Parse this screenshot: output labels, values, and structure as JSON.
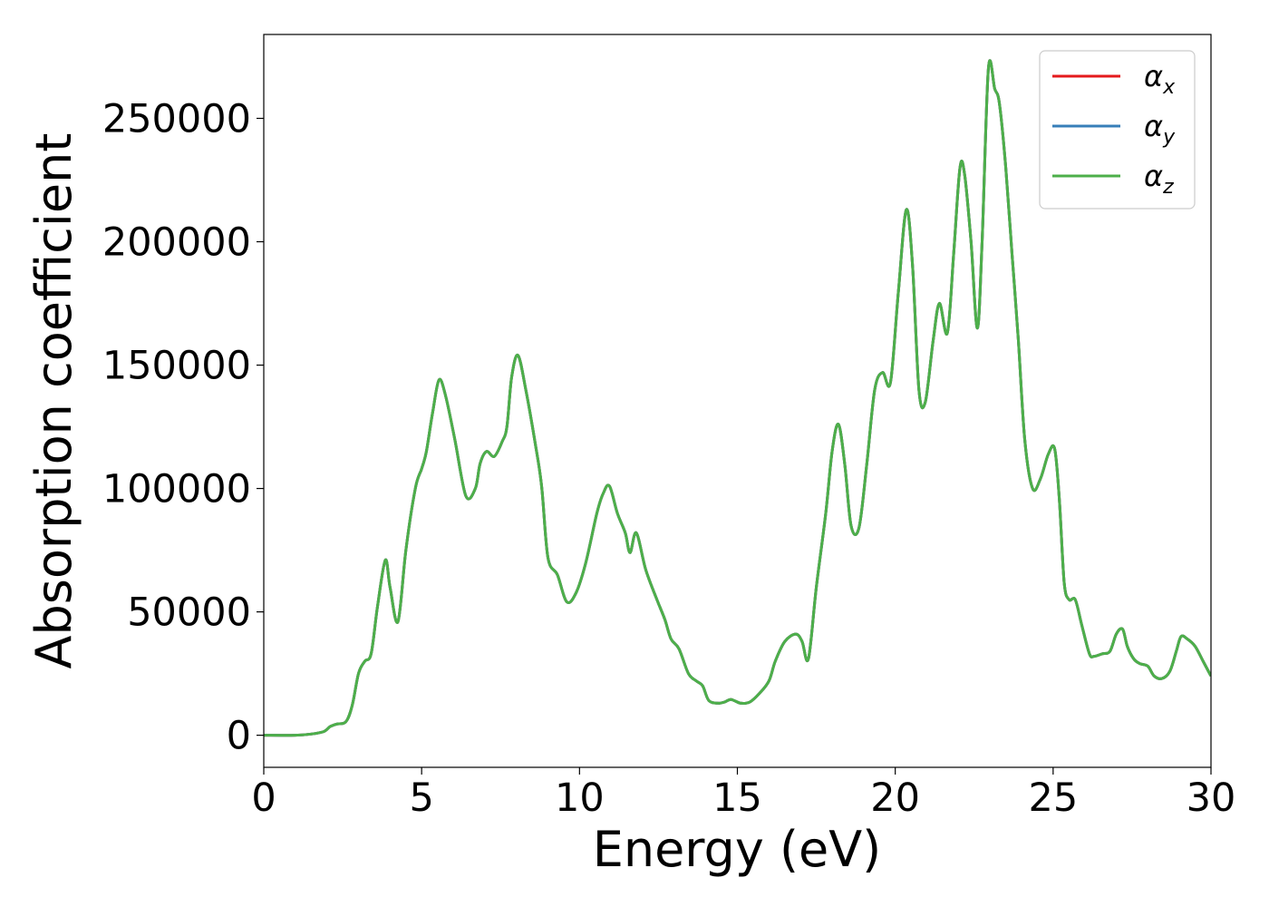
{
  "chart_data": {
    "type": "line",
    "xlabel": "Energy (eV)",
    "ylabel": "Absorption coefficient",
    "xlim": [
      0,
      30
    ],
    "ylim": [
      -13000,
      284000
    ],
    "xticks": [
      0,
      5,
      10,
      15,
      20,
      25,
      30
    ],
    "xtick_labels": [
      "0",
      "5",
      "10",
      "15",
      "20",
      "25",
      "30"
    ],
    "yticks": [
      0,
      50000,
      100000,
      150000,
      200000,
      250000
    ],
    "ytick_labels": [
      "0",
      "50000",
      "100000",
      "150000",
      "200000",
      "250000"
    ],
    "grid": false,
    "legend_position": "top-right",
    "x": [
      0,
      1,
      1.5,
      1.9,
      2.1,
      2.3,
      2.6,
      2.8,
      3.0,
      3.2,
      3.4,
      3.6,
      3.85,
      4.0,
      4.25,
      4.5,
      4.8,
      5.0,
      5.15,
      5.35,
      5.55,
      5.75,
      6.05,
      6.4,
      6.7,
      6.85,
      7.05,
      7.3,
      7.55,
      7.7,
      7.85,
      8.05,
      8.3,
      8.6,
      8.8,
      9.0,
      9.3,
      9.6,
      9.9,
      10.2,
      10.55,
      10.75,
      10.95,
      11.2,
      11.45,
      11.6,
      11.8,
      12.1,
      12.45,
      12.7,
      12.9,
      13.15,
      13.45,
      13.7,
      13.9,
      14.1,
      14.4,
      14.6,
      14.8,
      15.1,
      15.4,
      15.7,
      16.0,
      16.2,
      16.5,
      16.85,
      17.05,
      17.25,
      17.5,
      17.8,
      18.0,
      18.2,
      18.4,
      18.6,
      18.85,
      19.1,
      19.35,
      19.6,
      19.85,
      20.1,
      20.35,
      20.55,
      20.75,
      20.95,
      21.2,
      21.4,
      21.65,
      21.85,
      22.05,
      22.2,
      22.4,
      22.6,
      22.75,
      22.95,
      23.15,
      23.3,
      23.5,
      23.7,
      23.9,
      24.1,
      24.35,
      24.6,
      24.85,
      25.05,
      25.2,
      25.35,
      25.5,
      25.7,
      25.9,
      26.15,
      26.3,
      26.55,
      26.8,
      27.0,
      27.2,
      27.35,
      27.55,
      27.75,
      28.0,
      28.2,
      28.45,
      28.7,
      28.9,
      29.05,
      29.25,
      29.5,
      29.75,
      30.0
    ],
    "series": [
      {
        "name": "α_x",
        "color": "#e41a1c",
        "values": [
          0,
          0,
          500,
          1500,
          3500,
          4500,
          5500,
          12000,
          25000,
          30000,
          33000,
          52000,
          71000,
          60000,
          46000,
          75000,
          100000,
          108000,
          115000,
          131000,
          144000,
          138000,
          120000,
          97000,
          100000,
          110000,
          115000,
          113000,
          119000,
          125000,
          145000,
          154000,
          140000,
          118000,
          101000,
          72000,
          65000,
          54000,
          58000,
          70000,
          90000,
          98000,
          101000,
          90000,
          82000,
          74000,
          82000,
          67000,
          55000,
          47000,
          39000,
          35000,
          25000,
          22000,
          20000,
          14000,
          13000,
          13500,
          14500,
          13000,
          13500,
          17000,
          22000,
          30000,
          38000,
          41000,
          38000,
          31000,
          60000,
          90000,
          115000,
          126000,
          110000,
          85000,
          84000,
          110000,
          140000,
          147000,
          143000,
          180000,
          213000,
          190000,
          140000,
          135000,
          160000,
          175000,
          163000,
          195000,
          230000,
          227000,
          200000,
          165000,
          200000,
          270000,
          262000,
          256000,
          230000,
          195000,
          160000,
          120000,
          100000,
          104000,
          114000,
          116000,
          95000,
          62000,
          55000,
          55000,
          45000,
          33000,
          32000,
          33000,
          34000,
          41000,
          43000,
          36000,
          31000,
          29000,
          28000,
          24000,
          23000,
          26000,
          34000,
          40000,
          39000,
          36000,
          30000,
          24000
        ]
      },
      {
        "name": "α_y",
        "color": "#377eb8",
        "values": [
          0,
          0,
          500,
          1500,
          3500,
          4500,
          5500,
          12000,
          25000,
          30000,
          33000,
          52000,
          71000,
          60000,
          46000,
          75000,
          100000,
          108000,
          115000,
          131000,
          144000,
          138000,
          120000,
          97000,
          100000,
          110000,
          115000,
          113000,
          119000,
          125000,
          145000,
          154000,
          140000,
          118000,
          101000,
          72000,
          65000,
          54000,
          58000,
          70000,
          90000,
          98000,
          101000,
          90000,
          82000,
          74000,
          82000,
          67000,
          55000,
          47000,
          39000,
          35000,
          25000,
          22000,
          20000,
          14000,
          13000,
          13500,
          14500,
          13000,
          13500,
          17000,
          22000,
          30000,
          38000,
          41000,
          38000,
          31000,
          60000,
          90000,
          115000,
          126000,
          110000,
          85000,
          84000,
          110000,
          140000,
          147000,
          143000,
          180000,
          213000,
          190000,
          140000,
          135000,
          160000,
          175000,
          163000,
          195000,
          230000,
          227000,
          200000,
          165000,
          200000,
          270000,
          262000,
          256000,
          230000,
          195000,
          160000,
          120000,
          100000,
          104000,
          114000,
          116000,
          95000,
          62000,
          55000,
          55000,
          45000,
          33000,
          32000,
          33000,
          34000,
          41000,
          43000,
          36000,
          31000,
          29000,
          28000,
          24000,
          23000,
          26000,
          34000,
          40000,
          39000,
          36000,
          30000,
          24000
        ]
      },
      {
        "name": "α_z",
        "color": "#4daf4a",
        "values": [
          0,
          0,
          500,
          1500,
          3500,
          4500,
          5500,
          12000,
          25000,
          30000,
          33000,
          52000,
          71000,
          60000,
          46000,
          75000,
          100000,
          108000,
          115000,
          131000,
          144000,
          138000,
          120000,
          97000,
          100000,
          110000,
          115000,
          113000,
          119000,
          125000,
          145000,
          154000,
          140000,
          118000,
          101000,
          72000,
          65000,
          54000,
          58000,
          70000,
          90000,
          98000,
          101000,
          90000,
          82000,
          74000,
          82000,
          67000,
          55000,
          47000,
          39000,
          35000,
          25000,
          22000,
          20000,
          14000,
          13000,
          13500,
          14500,
          13000,
          13500,
          17000,
          22000,
          30000,
          38000,
          41000,
          38000,
          31000,
          60000,
          90000,
          115000,
          126000,
          110000,
          85000,
          84000,
          110000,
          140000,
          147000,
          143000,
          180000,
          213000,
          190000,
          140000,
          135000,
          160000,
          175000,
          163000,
          195000,
          230000,
          227000,
          200000,
          165000,
          200000,
          270000,
          262000,
          256000,
          230000,
          195000,
          160000,
          120000,
          100000,
          104000,
          114000,
          116000,
          95000,
          62000,
          55000,
          55000,
          45000,
          33000,
          32000,
          33000,
          34000,
          41000,
          43000,
          36000,
          31000,
          29000,
          28000,
          24000,
          23000,
          26000,
          34000,
          40000,
          39000,
          36000,
          30000,
          24000
        ]
      }
    ],
    "legend": [
      {
        "symbol": "α",
        "sub": "x",
        "color": "#e41a1c"
      },
      {
        "symbol": "α",
        "sub": "y",
        "color": "#377eb8"
      },
      {
        "symbol": "α",
        "sub": "z",
        "color": "#4daf4a"
      }
    ]
  }
}
